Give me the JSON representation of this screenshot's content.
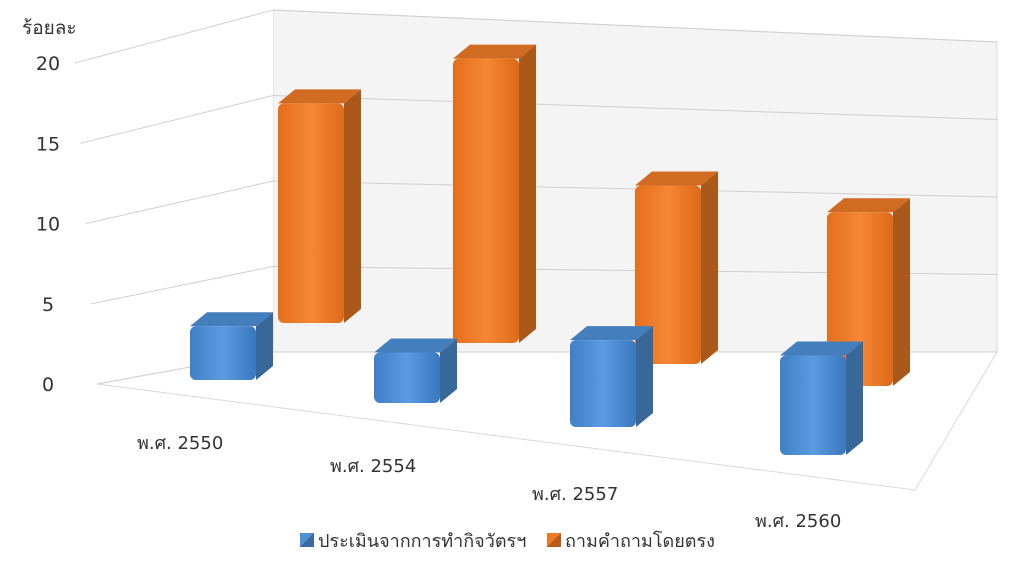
{
  "chart_data": {
    "type": "bar",
    "ylabel": "ร้อยละ",
    "ylim": [
      0,
      20
    ],
    "yticks": [
      0,
      5,
      10,
      15,
      20
    ],
    "categories": [
      "พ.ศ. 2550",
      "พ.ศ. 2554",
      "พ.ศ. 2557",
      "พ.ศ. 2560"
    ],
    "series": [
      {
        "name": "ประเมินจากการทำกิจวัตรฯ",
        "values": [
          3.4,
          3.2,
          5.5,
          6.3
        ],
        "color": "#4E8FD6"
      },
      {
        "name": "ถามคำถามโดยตรง",
        "values": [
          13.9,
          18.0,
          11.3,
          11.0
        ],
        "color": "#EE7A25"
      }
    ],
    "grid": true,
    "legend": "bottom"
  }
}
